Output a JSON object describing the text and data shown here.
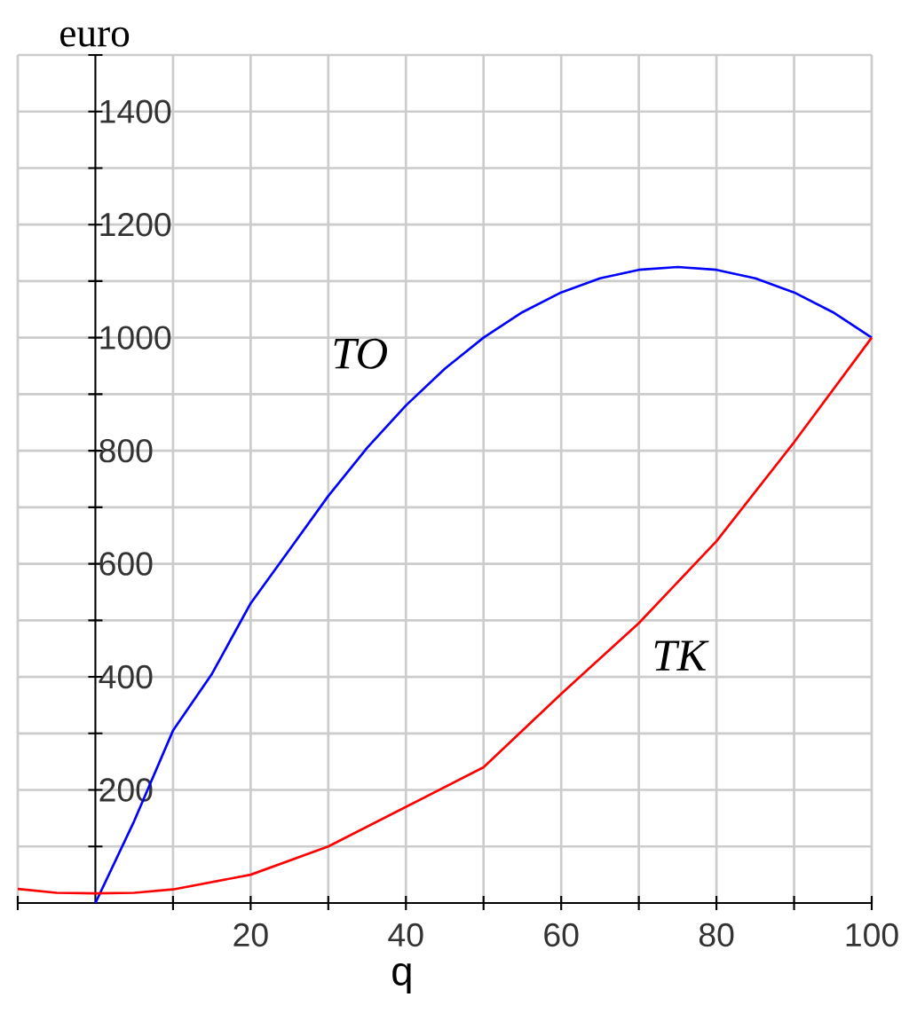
{
  "chart_data": {
    "type": "line",
    "xlabel": "q",
    "ylabel": "euro",
    "xlim": [
      -10,
      100
    ],
    "ylim": [
      0,
      1500
    ],
    "xticks": [
      {
        "value": -10,
        "label": null
      },
      {
        "value": 10,
        "label": null
      },
      20,
      {
        "value": 30,
        "label": null
      },
      40,
      {
        "value": 50,
        "label": null
      },
      60,
      {
        "value": 70,
        "label": null
      },
      80,
      {
        "value": 90,
        "label": null
      },
      100
    ],
    "yticks": [
      {
        "value": 100,
        "label": null
      },
      200,
      {
        "value": 300,
        "label": null
      },
      400,
      {
        "value": 500,
        "label": null
      },
      600,
      {
        "value": 700,
        "label": null
      },
      800,
      {
        "value": 900,
        "label": null
      },
      1000,
      {
        "value": 1100,
        "label": null
      },
      1200,
      {
        "value": 1300,
        "label": null
      },
      1400,
      {
        "value": 1500,
        "label": null
      }
    ],
    "grid": true,
    "marker": "none",
    "line_style": "solid",
    "series": [
      {
        "name": "TO",
        "color": "#0000ff",
        "x": [
          0,
          5,
          10,
          15,
          20,
          25,
          30,
          35,
          40,
          45,
          50,
          55,
          60,
          65,
          70,
          75,
          80,
          85,
          90,
          95,
          100
        ],
        "values": [
          0,
          145,
          305,
          405,
          530,
          625,
          720,
          805,
          880,
          945,
          1000,
          1045,
          1080,
          1105,
          1120,
          1125,
          1120,
          1105,
          1080,
          1045,
          1000
        ]
      },
      {
        "name": "TK",
        "color": "#ff0000",
        "x": [
          -10,
          -5,
          0,
          5,
          10,
          20,
          30,
          40,
          50,
          60,
          70,
          80,
          90,
          100
        ],
        "values": [
          25,
          18,
          17,
          18,
          24,
          50,
          100,
          170,
          240,
          370,
          495,
          640,
          815,
          1000
        ]
      }
    ]
  }
}
